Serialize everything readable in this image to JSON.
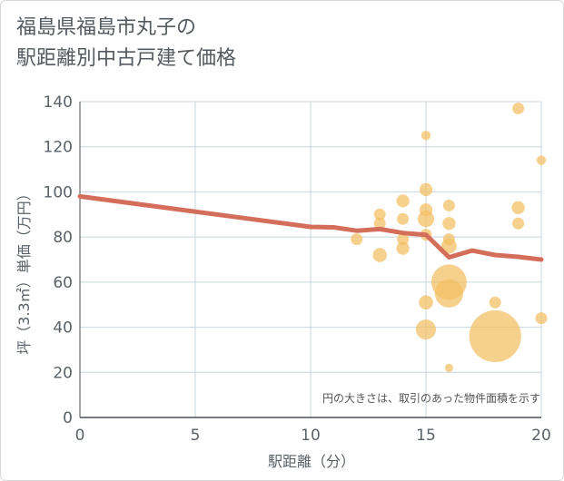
{
  "title_lines": [
    "福島県福島市丸子の",
    "駅距離別中古戸建て価格"
  ],
  "note": "円の大きさは、取引のあった物件面積を示す",
  "chart_data": {
    "type": "scatter",
    "xlabel": "駅距離（分）",
    "ylabel": "坪（3.3㎡）単価（万円）",
    "xlim": [
      0,
      20
    ],
    "ylim": [
      0,
      140
    ],
    "x_ticks": [
      "0",
      "5",
      "10",
      "15",
      "20"
    ],
    "y_ticks": [
      "0",
      "20",
      "40",
      "60",
      "80",
      "100",
      "120",
      "140"
    ],
    "grid": true,
    "colors": {
      "bubble": "#f3bf62",
      "line": "#d46e5a",
      "grid": "#c8d4de"
    },
    "points": [
      {
        "x": 12,
        "y": 79,
        "s": 1.0
      },
      {
        "x": 13,
        "y": 90,
        "s": 1.0
      },
      {
        "x": 13,
        "y": 86,
        "s": 1.0
      },
      {
        "x": 13,
        "y": 72,
        "s": 1.2
      },
      {
        "x": 14,
        "y": 96,
        "s": 1.1
      },
      {
        "x": 14,
        "y": 88,
        "s": 1.0
      },
      {
        "x": 14,
        "y": 79,
        "s": 1.0
      },
      {
        "x": 14,
        "y": 75,
        "s": 1.1
      },
      {
        "x": 15,
        "y": 125,
        "s": 0.8
      },
      {
        "x": 15,
        "y": 101,
        "s": 1.1
      },
      {
        "x": 15,
        "y": 92,
        "s": 1.1
      },
      {
        "x": 15,
        "y": 88,
        "s": 1.4
      },
      {
        "x": 15,
        "y": 81,
        "s": 1.0
      },
      {
        "x": 15,
        "y": 51,
        "s": 1.2
      },
      {
        "x": 15,
        "y": 39,
        "s": 1.7
      },
      {
        "x": 16,
        "y": 94,
        "s": 1.0
      },
      {
        "x": 16,
        "y": 86,
        "s": 1.1
      },
      {
        "x": 16,
        "y": 79,
        "s": 1.0
      },
      {
        "x": 16,
        "y": 76,
        "s": 1.3
      },
      {
        "x": 16,
        "y": 60,
        "s": 3.0
      },
      {
        "x": 16,
        "y": 55,
        "s": 2.4
      },
      {
        "x": 16,
        "y": 22,
        "s": 0.7
      },
      {
        "x": 18,
        "y": 51,
        "s": 1.0
      },
      {
        "x": 18,
        "y": 36,
        "s": 4.4
      },
      {
        "x": 19,
        "y": 137,
        "s": 1.0
      },
      {
        "x": 19,
        "y": 93,
        "s": 1.1
      },
      {
        "x": 19,
        "y": 86,
        "s": 1.0
      },
      {
        "x": 20,
        "y": 114,
        "s": 0.8
      },
      {
        "x": 20,
        "y": 44,
        "s": 1.0
      }
    ],
    "trend": [
      {
        "x": 0,
        "y": 98
      },
      {
        "x": 10,
        "y": 84.5
      },
      {
        "x": 11,
        "y": 84.3
      },
      {
        "x": 12,
        "y": 82.8
      },
      {
        "x": 13,
        "y": 83.5
      },
      {
        "x": 14,
        "y": 81.8
      },
      {
        "x": 15,
        "y": 81
      },
      {
        "x": 16,
        "y": 71
      },
      {
        "x": 17,
        "y": 74
      },
      {
        "x": 18,
        "y": 72
      },
      {
        "x": 19,
        "y": 71.2
      },
      {
        "x": 20,
        "y": 70
      }
    ]
  }
}
